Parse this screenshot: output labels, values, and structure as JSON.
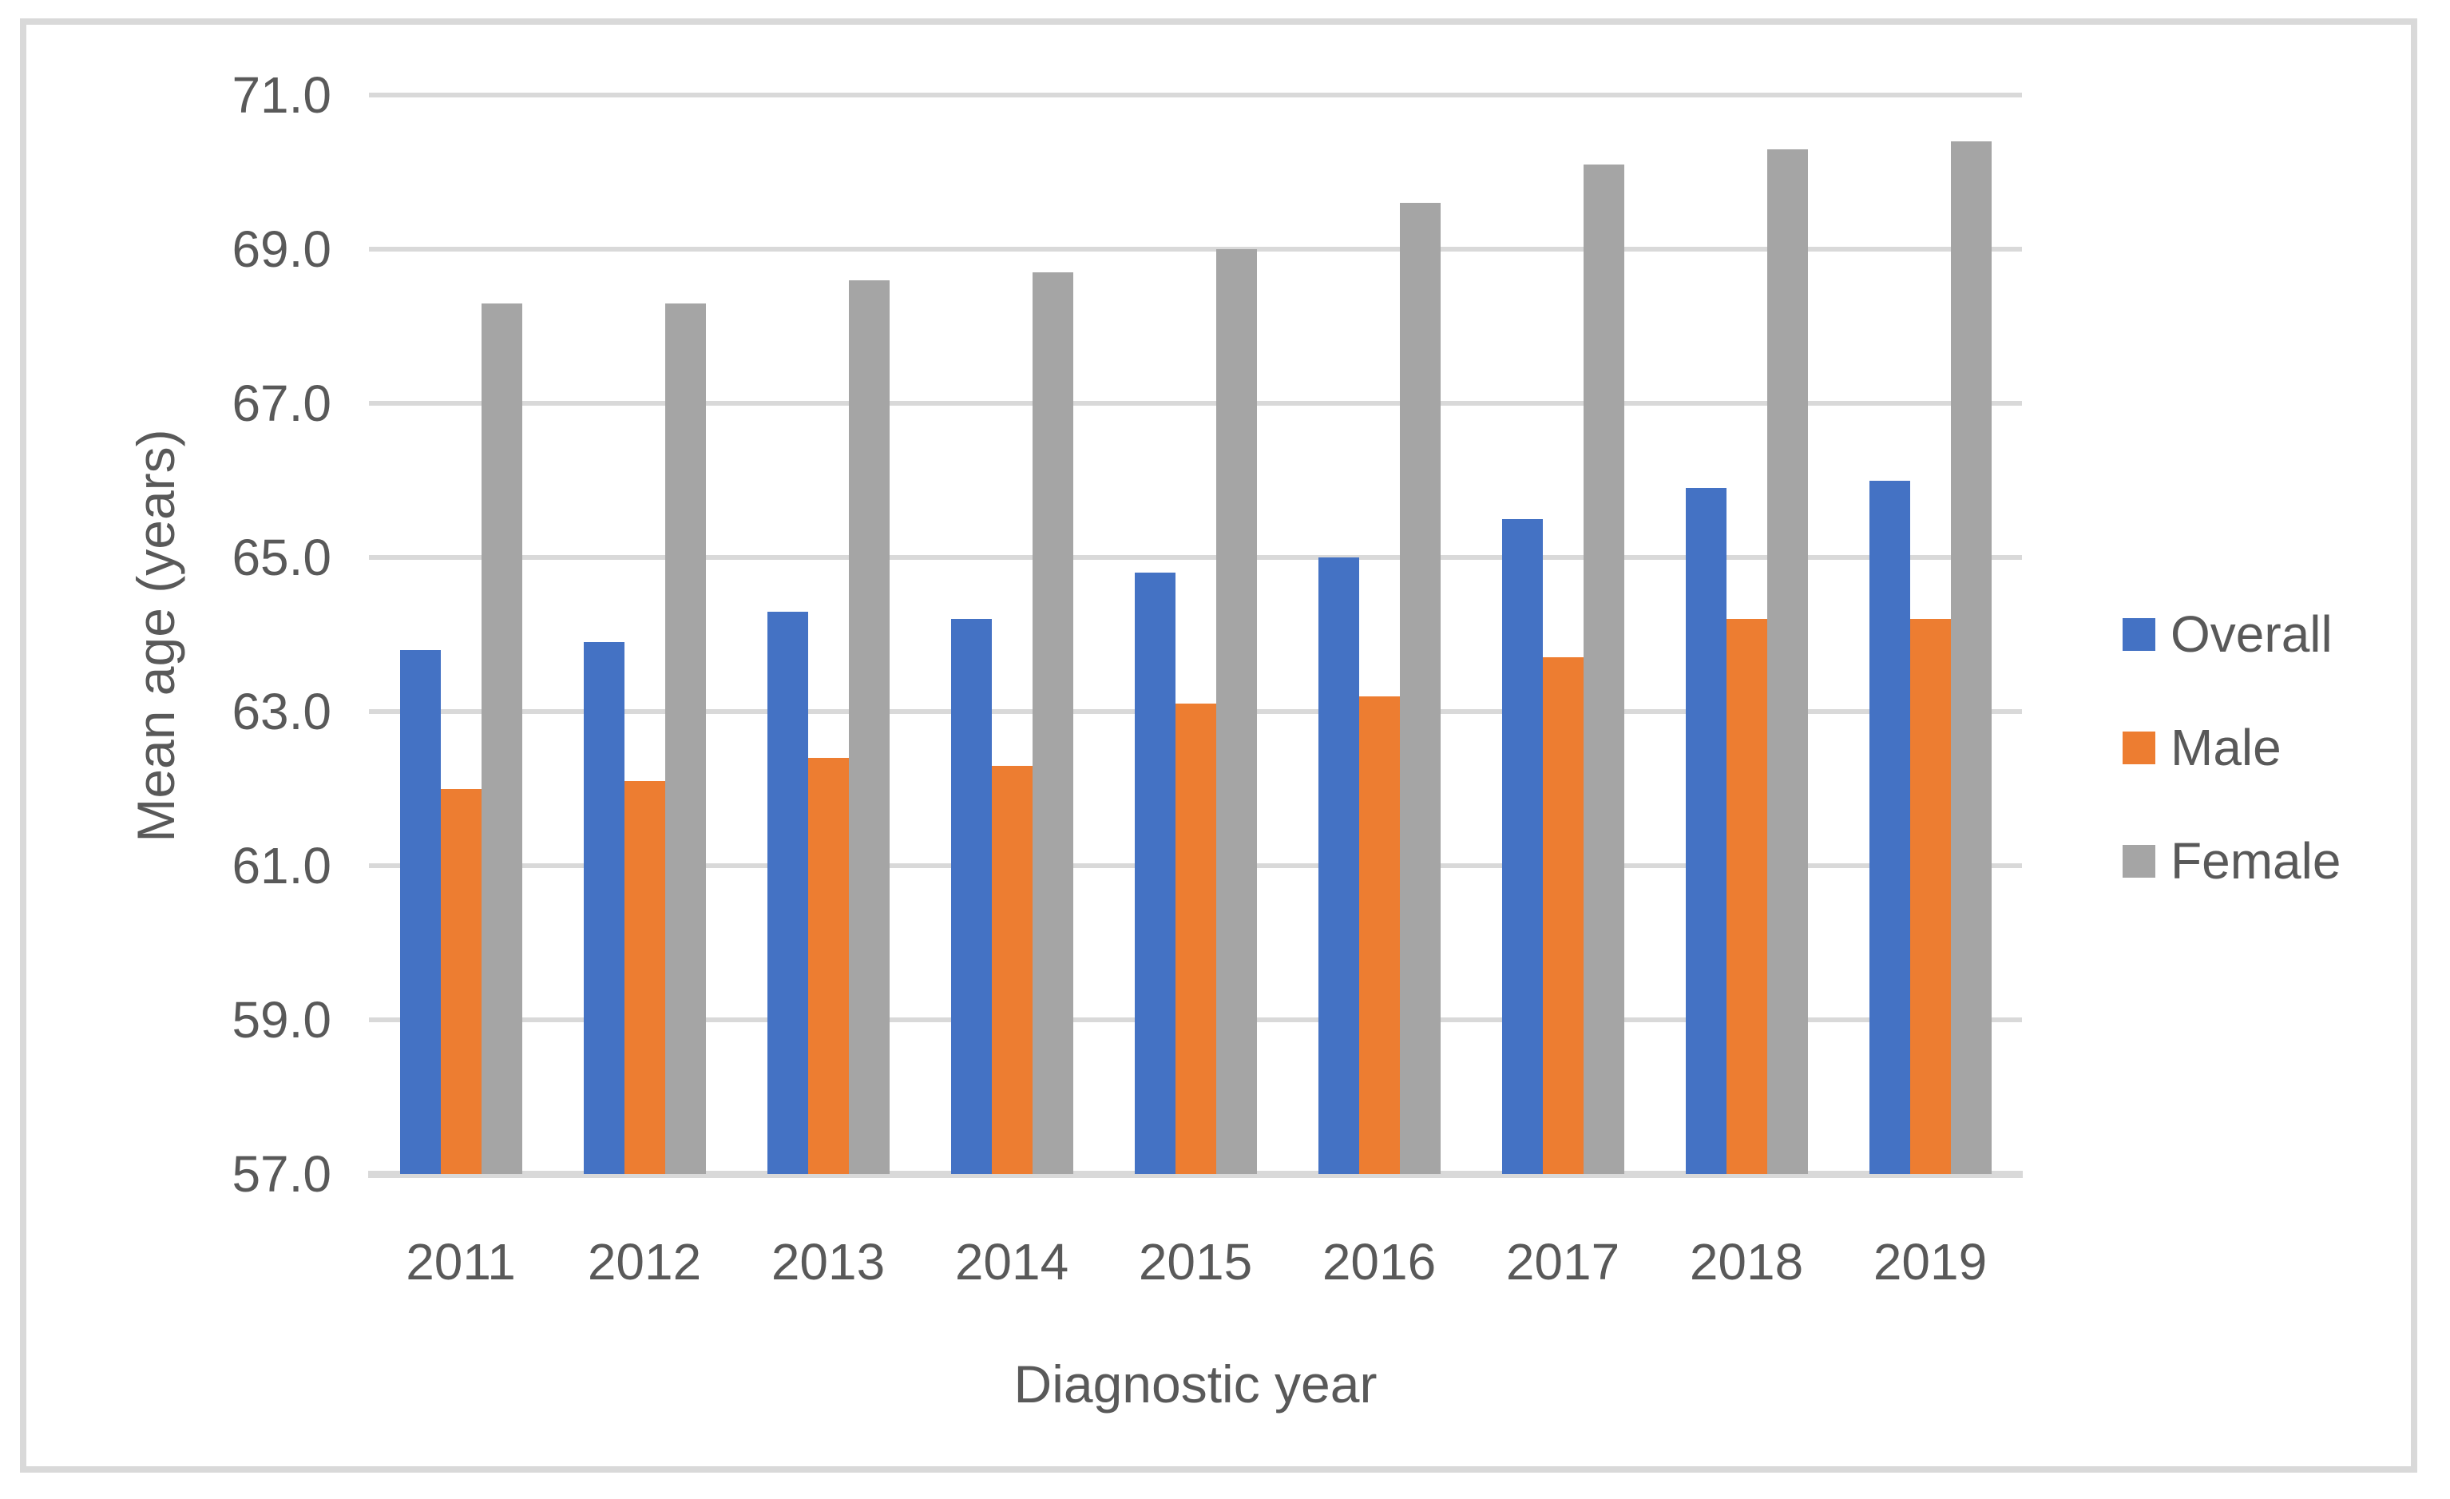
{
  "chart_data": {
    "type": "bar",
    "title": "",
    "categories": [
      "2011",
      "2012",
      "2013",
      "2014",
      "2015",
      "2016",
      "2017",
      "2018",
      "2019"
    ],
    "series": [
      {
        "name": "Overall",
        "color": "#4472C4",
        "values": [
          63.8,
          63.9,
          64.3,
          64.2,
          64.8,
          65.0,
          65.5,
          65.9,
          66.0
        ]
      },
      {
        "name": "Male",
        "color": "#ED7D31",
        "values": [
          62.0,
          62.1,
          62.4,
          62.3,
          63.1,
          63.2,
          63.7,
          64.2,
          64.2
        ]
      },
      {
        "name": "Female",
        "color": "#A5A5A5",
        "values": [
          68.3,
          68.3,
          68.6,
          68.7,
          69.0,
          69.6,
          70.1,
          70.3,
          70.4
        ]
      }
    ],
    "xlabel": "Diagnostic year",
    "ylabel": "Mean age (years)",
    "ylim": [
      57.0,
      71.0
    ],
    "yticks": [
      71.0,
      69.0,
      67.0,
      65.0,
      63.0,
      61.0,
      59.0,
      57.0
    ],
    "ytick_labels": [
      "71.0",
      "69.0",
      "67.0",
      "65.0",
      "63.0",
      "61.0",
      "59.0",
      "57.0"
    ],
    "grid": true,
    "legend_position": "right"
  },
  "colors": {
    "gridline": "#D9D9D9",
    "axis_line": "#D9D9D9",
    "text": "#595959",
    "frame_border": "#D9D9D9",
    "background": "#FFFFFF"
  }
}
